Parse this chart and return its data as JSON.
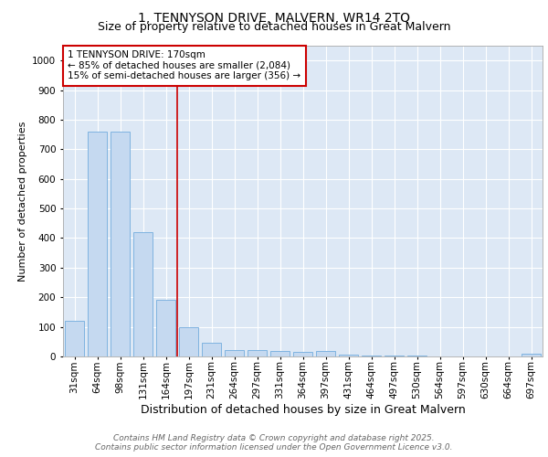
{
  "title1": "1, TENNYSON DRIVE, MALVERN, WR14 2TQ",
  "title2": "Size of property relative to detached houses in Great Malvern",
  "xlabel": "Distribution of detached houses by size in Great Malvern",
  "ylabel": "Number of detached properties",
  "categories": [
    "31sqm",
    "64sqm",
    "98sqm",
    "131sqm",
    "164sqm",
    "197sqm",
    "231sqm",
    "264sqm",
    "297sqm",
    "331sqm",
    "364sqm",
    "397sqm",
    "431sqm",
    "464sqm",
    "497sqm",
    "530sqm",
    "564sqm",
    "597sqm",
    "630sqm",
    "664sqm",
    "697sqm"
  ],
  "values": [
    120,
    760,
    760,
    420,
    190,
    100,
    47,
    22,
    22,
    18,
    16,
    17,
    5,
    4,
    4,
    2,
    1,
    1,
    0,
    1,
    8
  ],
  "bar_color": "#c5d9f0",
  "bar_edge_color": "#7fb3e0",
  "vline_x": 4.5,
  "vline_color": "#cc0000",
  "annotation_text": "1 TENNYSON DRIVE: 170sqm\n← 85% of detached houses are smaller (2,084)\n15% of semi-detached houses are larger (356) →",
  "annotation_box_color": "#ffffff",
  "annotation_box_edge": "#cc0000",
  "ylim": [
    0,
    1050
  ],
  "yticks": [
    0,
    100,
    200,
    300,
    400,
    500,
    600,
    700,
    800,
    900,
    1000
  ],
  "plot_bg_color": "#dde8f5",
  "fig_bg_color": "#ffffff",
  "footer_line1": "Contains HM Land Registry data © Crown copyright and database right 2025.",
  "footer_line2": "Contains public sector information licensed under the Open Government Licence v3.0.",
  "title1_fontsize": 10,
  "title2_fontsize": 9,
  "xlabel_fontsize": 9,
  "ylabel_fontsize": 8,
  "tick_fontsize": 7.5,
  "footer_fontsize": 6.5,
  "annotation_fontsize": 7.5
}
